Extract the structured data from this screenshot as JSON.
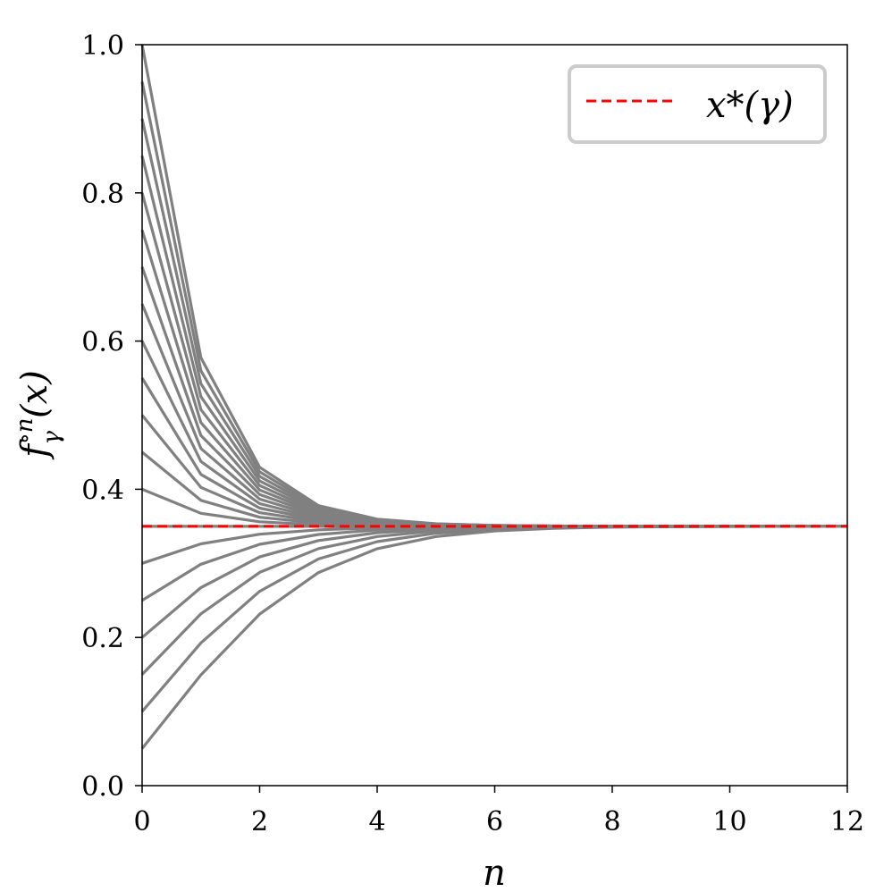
{
  "chart_data": {
    "type": "line",
    "title": "",
    "xlabel": "n",
    "ylabel_base": "f",
    "ylabel_sup": "∘n",
    "ylabel_sub": "γ",
    "ylabel_arg": "(x)",
    "xlim": [
      0,
      12
    ],
    "ylim": [
      0,
      1.0
    ],
    "x_ticks": [
      0,
      2,
      4,
      6,
      8,
      10,
      12
    ],
    "x_tick_labels": [
      "0",
      "2",
      "4",
      "6",
      "8",
      "10",
      "12"
    ],
    "y_ticks": [
      0,
      0.2,
      0.4,
      0.6,
      0.8,
      1.0
    ],
    "y_tick_labels": [
      "0.0",
      "0.2",
      "0.4",
      "0.6",
      "0.8",
      "1.0"
    ],
    "grid": false,
    "legend": {
      "placement": "top-right",
      "entries": [
        {
          "label": "x*(γ)",
          "color": "#ff0000",
          "style": "dashed"
        }
      ]
    },
    "fixed_point": 0.35,
    "gamma": 0.65,
    "initial_values": [
      0.05,
      0.1,
      0.15,
      0.2,
      0.25,
      0.3,
      0.35,
      0.4,
      0.45,
      0.5,
      0.55,
      0.6,
      0.65,
      0.7,
      0.75,
      0.8,
      0.85,
      0.9,
      0.95,
      1.0
    ],
    "series_color": "#808080",
    "x": [
      0,
      1,
      2,
      3,
      4,
      5,
      6,
      7,
      8,
      9,
      10,
      11,
      12
    ]
  }
}
